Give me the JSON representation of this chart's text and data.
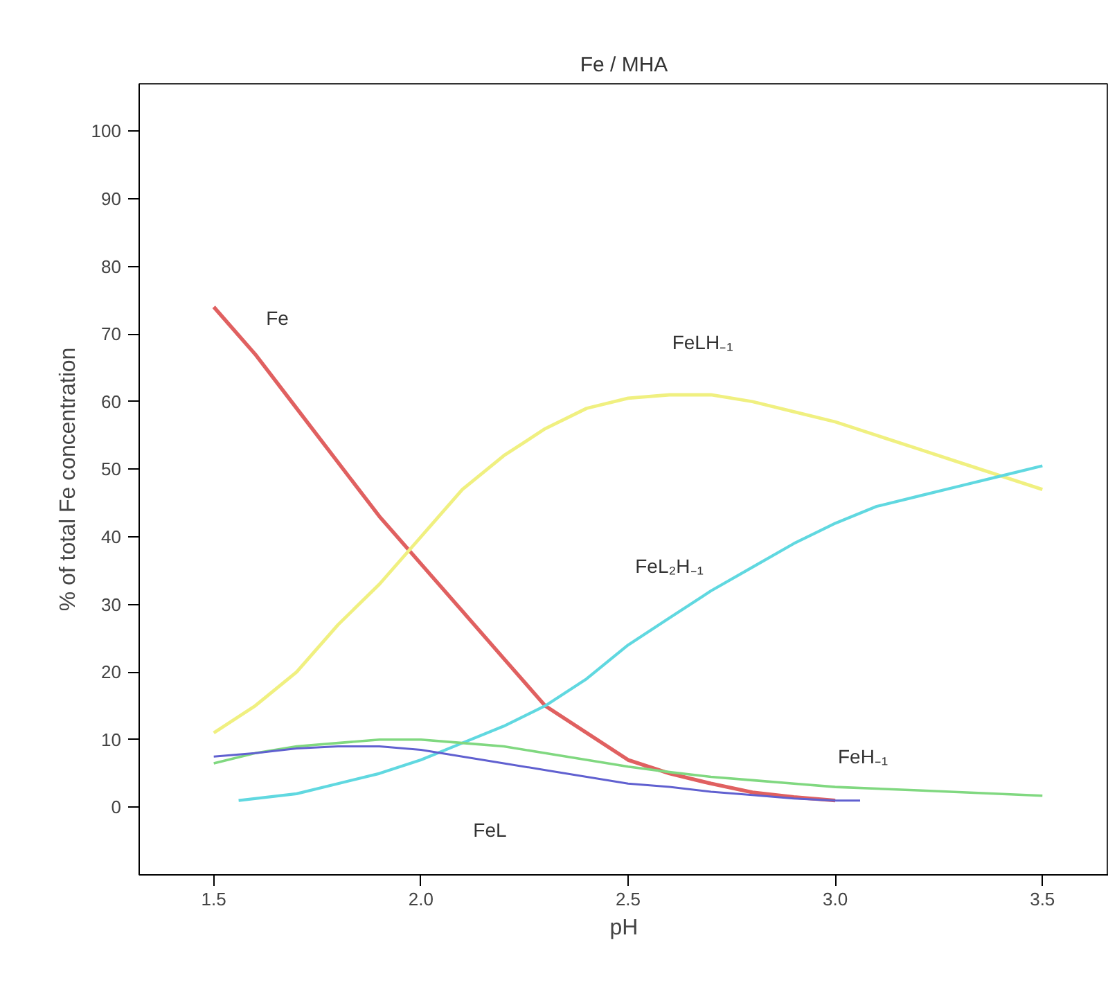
{
  "chart_data": {
    "type": "line",
    "title": "Fe / MHA",
    "xlabel": "pH",
    "ylabel": "% of total Fe concentration",
    "xlim": [
      1.32,
      3.66
    ],
    "ylim": [
      -10,
      107
    ],
    "xticks": [
      {
        "value": 1.5,
        "label": "1.5"
      },
      {
        "value": 2.0,
        "label": "2.0"
      },
      {
        "value": 2.5,
        "label": "2.5"
      },
      {
        "value": 3.0,
        "label": "3.0"
      },
      {
        "value": 3.5,
        "label": "3.5"
      }
    ],
    "yticks": [
      0,
      10,
      20,
      30,
      40,
      50,
      60,
      70,
      80,
      90,
      100
    ],
    "marker": "none",
    "line_style": "solid",
    "series": [
      {
        "color": "#e06060",
        "x": [
          1.5,
          1.6,
          1.7,
          1.8,
          1.9,
          2.0,
          2.1,
          2.2,
          2.3,
          2.4,
          2.5,
          2.6,
          2.7,
          2.8,
          2.9,
          3.0
        ],
        "values": [
          74,
          67,
          59,
          51,
          43,
          36,
          29,
          22,
          15,
          11,
          7,
          5,
          3.5,
          2.2,
          1.5,
          1
        ]
      },
      {
        "color": "#f0f080",
        "x": [
          1.5,
          1.6,
          1.7,
          1.8,
          1.9,
          2.0,
          2.1,
          2.2,
          2.3,
          2.4,
          2.5,
          2.6,
          2.7,
          2.8,
          2.9,
          3.0,
          3.1,
          3.2,
          3.3,
          3.4,
          3.5
        ],
        "values": [
          11,
          15,
          20,
          27,
          33,
          40,
          47,
          52,
          56,
          59,
          60.5,
          61,
          61,
          60,
          58.5,
          57,
          55,
          53,
          51,
          49,
          47
        ]
      },
      {
        "color": "#60d8e0",
        "x": [
          1.56,
          1.7,
          1.8,
          1.9,
          2.0,
          2.1,
          2.2,
          2.3,
          2.4,
          2.5,
          2.6,
          2.7,
          2.8,
          2.9,
          3.0,
          3.1,
          3.2,
          3.3,
          3.4,
          3.5
        ],
        "values": [
          1,
          2,
          3.5,
          5,
          7,
          9.5,
          12,
          15,
          19,
          24,
          28,
          32,
          35.5,
          39,
          42,
          44.5,
          46,
          47.5,
          49,
          50.5
        ]
      },
      {
        "color": "#80d880",
        "x": [
          1.5,
          1.6,
          1.7,
          1.8,
          1.9,
          2.0,
          2.1,
          2.2,
          2.3,
          2.4,
          2.5,
          2.6,
          2.7,
          2.8,
          2.9,
          3.0,
          3.2,
          3.5
        ],
        "values": [
          6.5,
          8,
          9,
          9.5,
          10,
          10,
          9.5,
          9,
          8,
          7,
          6,
          5.2,
          4.5,
          4,
          3.5,
          3,
          2.5,
          1.7
        ]
      },
      {
        "color": "#6060d0",
        "x": [
          1.5,
          1.6,
          1.7,
          1.8,
          1.9,
          2.0,
          2.1,
          2.2,
          2.3,
          2.4,
          2.5,
          2.6,
          2.7,
          2.8,
          2.9,
          3.0,
          3.06
        ],
        "values": [
          7.5,
          8,
          8.7,
          9,
          9,
          8.5,
          7.5,
          6.5,
          5.5,
          4.5,
          3.5,
          3,
          2.3,
          1.8,
          1.3,
          1,
          1
        ]
      }
    ],
    "annotations": [
      {
        "text": "Fe",
        "x": 1.6,
        "y": 67
      },
      {
        "text": "FeLH₋₁",
        "x": 2.7,
        "y": 61
      },
      {
        "text": "FeL₂H₋₁",
        "x": 2.7,
        "y": 32
      },
      {
        "text": "FeH₋₁",
        "x": 3.0,
        "y": 3
      },
      {
        "text": "FeL",
        "x": 2.2,
        "y": 6.5
      }
    ]
  }
}
